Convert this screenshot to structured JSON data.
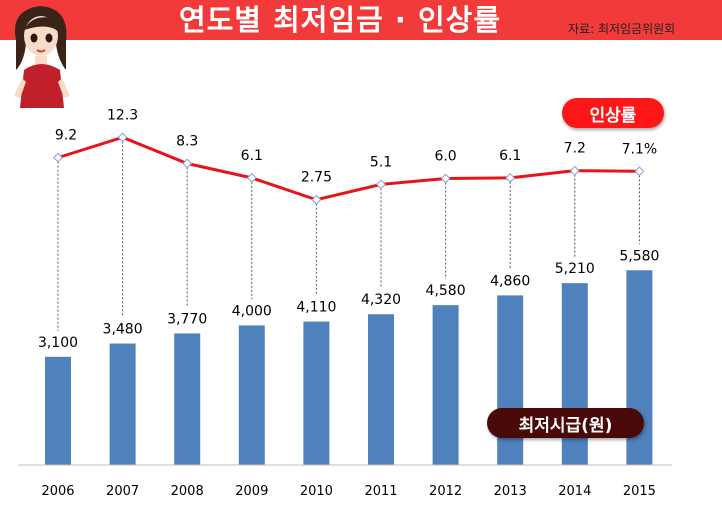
{
  "header": {
    "title": "연도별 최저임금 · 인상률",
    "source": "자료: 최저임금위원회"
  },
  "legend": {
    "rate_label": "인상률",
    "wage_label": "최저시급(원)"
  },
  "colors": {
    "header_bg": "#f23a3a",
    "bar": "#4f81bd",
    "line": "#e8141c",
    "rate_pill": "#ff1616",
    "wage_pill": "#4a0909"
  },
  "chart_data": {
    "type": "bar",
    "categories": [
      "2006",
      "2007",
      "2008",
      "2009",
      "2010",
      "2011",
      "2012",
      "2013",
      "2014",
      "2015"
    ],
    "series": [
      {
        "name": "최저시급(원)",
        "type": "bar",
        "values": [
          3100,
          3480,
          3770,
          4000,
          4110,
          4320,
          4580,
          4860,
          5210,
          5580
        ],
        "labels": [
          "3,100",
          "3,480",
          "3,770",
          "4,000",
          "4,110",
          "4,320",
          "4,580",
          "4,860",
          "5,210",
          "5,580"
        ]
      },
      {
        "name": "인상률",
        "type": "line",
        "values": [
          9.2,
          12.3,
          8.3,
          6.1,
          2.75,
          5.1,
          6.0,
          6.1,
          7.2,
          7.1
        ],
        "labels": [
          "9.2",
          "12.3",
          "8.3",
          "6.1",
          "2.75",
          "5.1",
          "6.0",
          "6.1",
          "7.2",
          "7.1%"
        ]
      }
    ],
    "bar_axis_max": 6600,
    "grid": false,
    "legend_placement": "right"
  }
}
